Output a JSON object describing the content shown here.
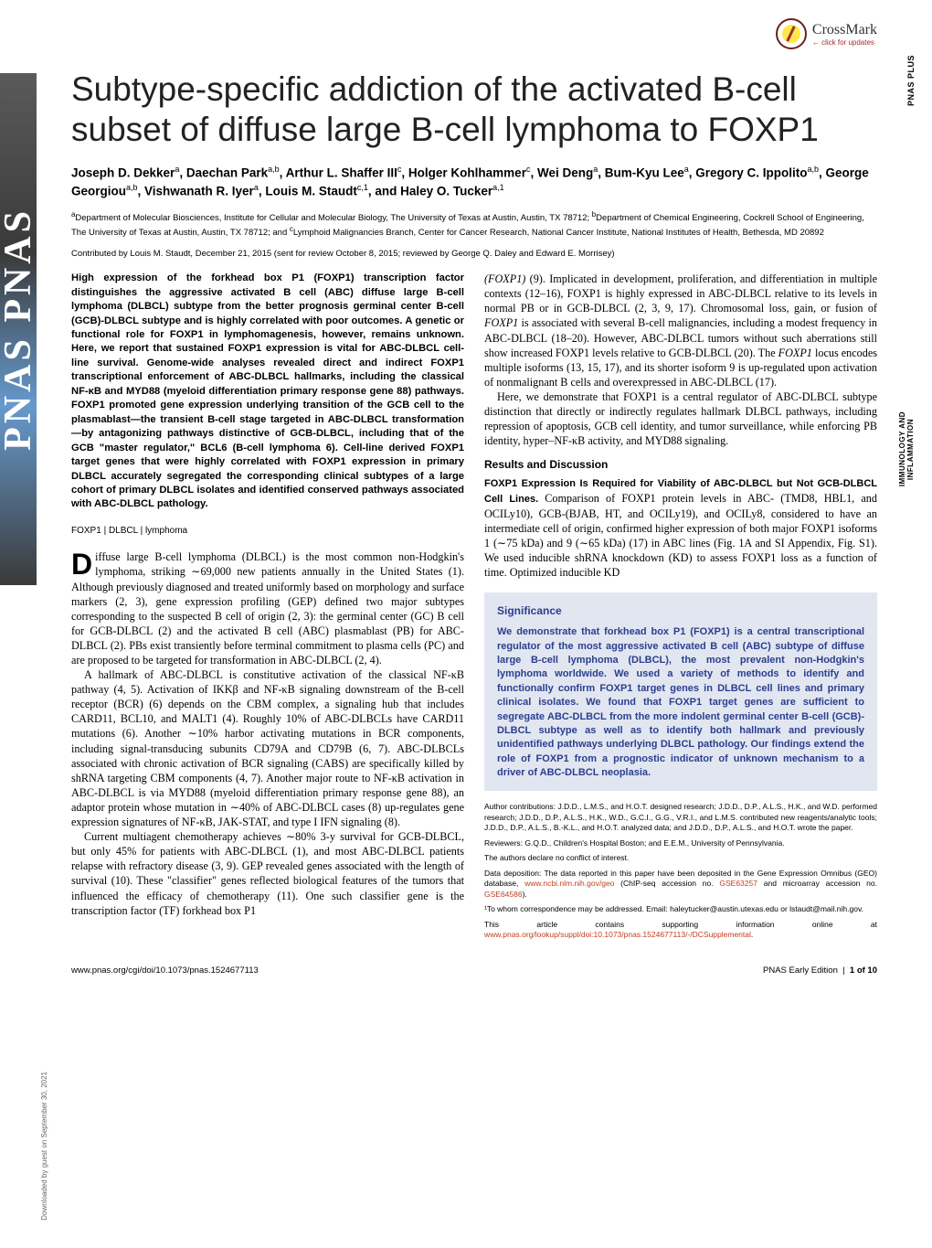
{
  "crossmark": {
    "brand": "CrossMark",
    "sub": "← click for updates"
  },
  "sidebar": {
    "pnas": "PNAS   PNAS"
  },
  "rightLabels": {
    "plus": "PNAS PLUS",
    "section": "IMMUNOLOGY AND\nINFLAMMATION"
  },
  "download": "Downloaded by guest on September 30, 2021",
  "title": "Subtype-specific addiction of the activated B-cell subset of diffuse large B-cell lymphoma to FOXP1",
  "authorsHTML": "Joseph D. Dekker<sup>a</sup>, Daechan Park<sup>a,b</sup>, Arthur L. Shaffer III<sup>c</sup>, Holger Kohlhammer<sup>c</sup>, Wei Deng<sup>a</sup>, Bum-Kyu Lee<sup>a</sup>, Gregory C. Ippolito<sup>a,b</sup>, George Georgiou<sup>a,b</sup>, Vishwanath R. Iyer<sup>a</sup>, Louis M. Staudt<sup>c,1</sup>, and Haley O. Tucker<sup>a,1</sup>",
  "affiliations": "<sup>a</sup>Department of Molecular Biosciences, Institute for Cellular and Molecular Biology, The University of Texas at Austin, Austin, TX 78712; <sup>b</sup>Department of Chemical Engineering, Cockrell School of Engineering, The University of Texas at Austin, Austin, TX 78712; and <sup>c</sup>Lymphoid Malignancies Branch, Center for Cancer Research, National Cancer Institute, National Institutes of Health, Bethesda, MD 20892",
  "contributed": "Contributed by Louis M. Staudt, December 21, 2015 (sent for review October 8, 2015; reviewed by George Q. Daley and Edward E. Morrisey)",
  "abstract": "High expression of the forkhead box P1 (FOXP1) transcription factor distinguishes the aggressive activated B cell (ABC) diffuse large B-cell lymphoma (DLBCL) subtype from the better prognosis germinal center B-cell (GCB)-DLBCL subtype and is highly correlated with poor outcomes. A genetic or functional role for FOXP1 in lymphomagenesis, however, remains unknown. Here, we report that sustained FOXP1 expression is vital for ABC-DLBCL cell-line survival. Genome-wide analyses revealed direct and indirect FOXP1 transcriptional enforcement of ABC-DLBCL hallmarks, including the classical NF-κB and MYD88 (myeloid differentiation primary response gene 88) pathways. FOXP1 promoted gene expression underlying transition of the GCB cell to the plasmablast—the transient B-cell stage targeted in ABC-DLBCL transformation—by antagonizing pathways distinctive of GCB-DLBCL, including that of the GCB \"master regulator,\" BCL6 (B-cell lymphoma 6). Cell-line derived FOXP1 target genes that were highly correlated with FOXP1 expression in primary DLBCL accurately segregated the corresponding clinical subtypes of a large cohort of primary DLBCL isolates and identified conserved pathways associated with ABC-DLBCL pathology.",
  "keywords": "FOXP1 | DLBCL | lymphoma",
  "colLeft": {
    "p1": "iffuse large B-cell lymphoma (DLBCL) is the most common non-Hodgkin's lymphoma, striking ∼69,000 new patients annually in the United States (1). Although previously diagnosed and treated uniformly based on morphology and surface markers (2, 3), gene expression profiling (GEP) defined two major subtypes corresponding to the suspected B cell of origin (2, 3): the germinal center (GC) B cell for GCB-DLBCL (2) and the activated B cell (ABC) plasmablast (PB) for ABC-DLBCL (2). PBs exist transiently before terminal commitment to plasma cells (PC) and are proposed to be targeted for transformation in ABC-DLBCL (2, 4).",
    "p2": "A hallmark of ABC-DLBCL is constitutive activation of the classical NF-κB pathway (4, 5). Activation of IKKβ and NF-κB signaling downstream of the B-cell receptor (BCR) (6) depends on the CBM complex, a signaling hub that includes CARD11, BCL10, and MALT1 (4). Roughly 10% of ABC-DLBCLs have CARD11 mutations (6). Another ∼10% harbor activating mutations in BCR components, including signal-transducing subunits CD79A and CD79B (6, 7). ABC-DLBCLs associated with chronic activation of BCR signaling (CABS) are specifically killed by shRNA targeting CBM components (4, 7). Another major route to NF-κB activation in ABC-DLBCL is via MYD88 (myeloid differentiation primary response gene 88), an adaptor protein whose mutation in ∼40% of ABC-DLBCL cases (8) up-regulates gene expression signatures of NF-κB, JAK-STAT, and type I IFN signaling (8).",
    "p3": "Current multiagent chemotherapy achieves ∼80% 3-y survival for GCB-DLBCL, but only 45% for patients with ABC-DLBCL (1), and most ABC-DLBCL patients relapse with refractory disease (3, 9). GEP revealed genes associated with the length of survival (10). These \"classifier\" genes reflected biological features of the tumors that influenced the efficacy of chemotherapy (11). One such classifier gene is the transcription factor (TF) forkhead box P1"
  },
  "colRight": {
    "p1": "(FOXP1) (9). Implicated in development, proliferation, and differentiation in multiple contexts (12–16), FOXP1 is highly expressed in ABC-DLBCL relative to its levels in normal PB or in GCB-DLBCL (2, 3, 9, 17). Chromosomal loss, gain, or fusion of FOXP1 is associated with several B-cell malignancies, including a modest frequency in ABC-DLBCL (18–20). However, ABC-DLBCL tumors without such aberrations still show increased FOXP1 levels relative to GCB-DLBCL (20). The FOXP1 locus encodes multiple isoforms (13, 15, 17), and its shorter isoform 9 is up-regulated upon activation of nonmalignant B cells and overexpressed in ABC-DLBCL (17).",
    "p2": "Here, we demonstrate that FOXP1 is a central regulator of ABC-DLBCL subtype distinction that directly or indirectly regulates hallmark DLBCL pathways, including repression of apoptosis, GCB cell identity, and tumor surveillance, while enforcing PB identity, hyper–NF-κB activity, and MYD88 signaling.",
    "resultsHead": "Results and Discussion",
    "runin": "FOXP1 Expression Is Required for Viability of ABC-DLBCL but Not GCB-DLBCL Cell Lines.",
    "p3": " Comparison of FOXP1 protein levels in ABC- (TMD8, HBL1, and OCILy10), GCB-(BJAB, HT, and OCILy19), and OCILy8, considered to have an intermediate cell of origin, confirmed higher expression of both major FOXP1 isoforms 1 (∼75 kDa) and 9 (∼65 kDa) (17) in ABC lines (Fig. 1A and SI Appendix, Fig. S1). We used inducible shRNA knockdown (KD) to assess FOXP1 loss as a function of time. Optimized inducible KD"
  },
  "significance": {
    "title": "Significance",
    "text": "We demonstrate that forkhead box P1 (FOXP1) is a central transcriptional regulator of the most aggressive activated B cell (ABC) subtype of diffuse large B-cell lymphoma (DLBCL), the most prevalent non-Hodgkin's lymphoma worldwide. We used a variety of methods to identify and functionally confirm FOXP1 target genes in DLBCL cell lines and primary clinical isolates. We found that FOXP1 target genes are sufficient to segregate ABC-DLBCL from the more indolent germinal center B-cell (GCB)-DLBCL subtype as well as to identify both hallmark and previously unidentified pathways underlying DLBCL pathology. Our findings extend the role of FOXP1 from a prognostic indicator of unknown mechanism to a driver of ABC-DLBCL neoplasia."
  },
  "footnotes": {
    "f1": "Author contributions: J.D.D., L.M.S., and H.O.T. designed research; J.D.D., D.P., A.L.S., H.K., and W.D. performed research; J.D.D., D.P., A.L.S., H.K., W.D., G.C.I., G.G., V.R.I., and L.M.S. contributed new reagents/analytic tools; J.D.D., D.P., A.L.S., B.-K.L., and H.O.T. analyzed data; and J.D.D., D.P., A.L.S., and H.O.T. wrote the paper.",
    "f2": "Reviewers: G.Q.D., Children's Hospital Boston; and E.E.M., University of Pennsylvania.",
    "f3": "The authors declare no conflict of interest.",
    "f4a": "Data deposition: The data reported in this paper have been deposited in the Gene Expression Omnibus (GEO) database, ",
    "f4link1": "www.ncbi.nlm.nih.gov/geo",
    "f4b": " (ChIP-seq accession no. ",
    "f4link2": "GSE63257",
    "f4c": " and microarray accession no. ",
    "f4link3": "GSE64586",
    "f4d": ").",
    "f5": "¹To whom correspondence may be addressed. Email: haleytucker@austin.utexas.edu or lstaudt@mail.nih.gov.",
    "f6a": "This article contains supporting information online at ",
    "f6link": "www.pnas.org/lookup/suppl/doi:10.1073/pnas.1524677113/-/DCSupplemental",
    "f6b": "."
  },
  "footer": {
    "left": "www.pnas.org/cgi/doi/10.1073/pnas.1524677113",
    "right": "PNAS Early Edition | 1 of 10"
  },
  "colors": {
    "link": "#c04020",
    "sigBg": "#e2e6f0",
    "sigText": "#2a3f8f"
  }
}
